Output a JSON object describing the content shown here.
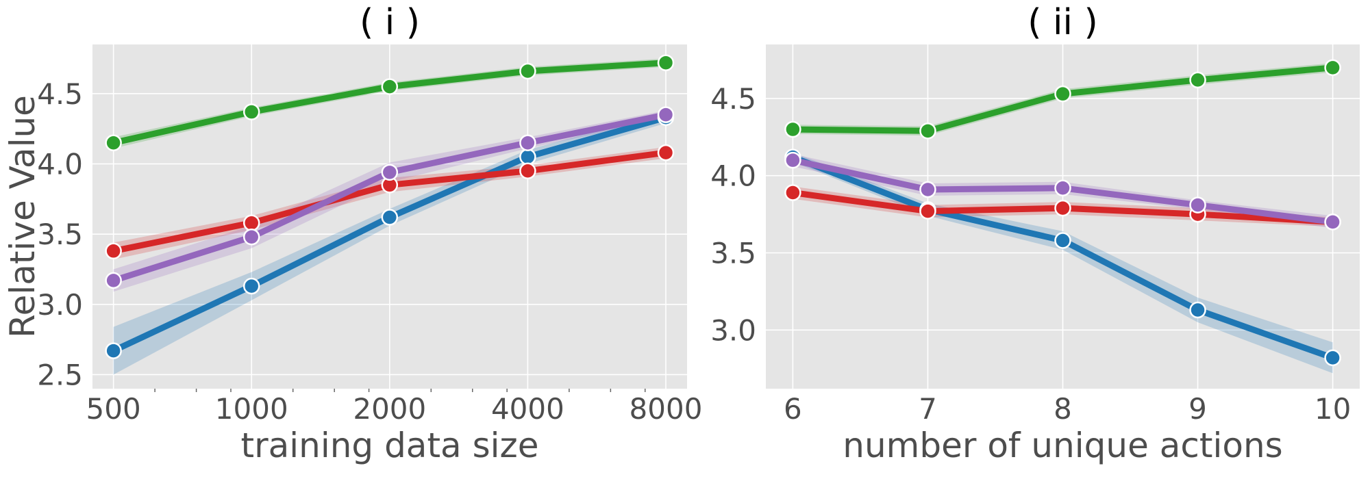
{
  "chart_data": [
    {
      "type": "line",
      "title": "( i )",
      "xlabel": "training data size",
      "ylabel": "Relative Value",
      "x_scale": "log2",
      "categories": [
        "500",
        "1000",
        "2000",
        "4000",
        "8000"
      ],
      "x": [
        500,
        1000,
        2000,
        4000,
        8000
      ],
      "xlim": [
        450,
        8900
      ],
      "ylim": [
        2.4,
        4.85
      ],
      "yticks": [
        2.5,
        3.0,
        3.5,
        4.0,
        4.5
      ],
      "ytick_labels": [
        "2.5",
        "3.0",
        "3.5",
        "4.0",
        "4.5"
      ],
      "grid": true,
      "series": [
        {
          "name": "green",
          "color": "#2ca02c",
          "values": [
            4.15,
            4.37,
            4.55,
            4.66,
            4.72
          ],
          "err": [
            0.04,
            0.03,
            0.03,
            0.03,
            0.03
          ]
        },
        {
          "name": "purple",
          "color": "#9467bd",
          "values": [
            3.17,
            3.48,
            3.94,
            4.15,
            4.35
          ],
          "err": [
            0.08,
            0.08,
            0.07,
            0.04,
            0.03
          ]
        },
        {
          "name": "red",
          "color": "#d62728",
          "values": [
            3.38,
            3.58,
            3.85,
            3.95,
            4.08
          ],
          "err": [
            0.06,
            0.05,
            0.05,
            0.04,
            0.04
          ]
        },
        {
          "name": "blue",
          "color": "#1f77b4",
          "values": [
            2.67,
            3.13,
            3.62,
            4.05,
            4.33
          ],
          "err": [
            0.17,
            0.1,
            0.06,
            0.05,
            0.04
          ]
        }
      ]
    },
    {
      "type": "line",
      "title": "( ii )",
      "xlabel": "number of unique actions",
      "ylabel": "",
      "categories": [
        "6",
        "7",
        "8",
        "9",
        "10"
      ],
      "x": [
        6,
        7,
        8,
        9,
        10
      ],
      "xlim": [
        5.8,
        10.2
      ],
      "ylim": [
        2.62,
        4.85
      ],
      "yticks": [
        3.0,
        3.5,
        4.0,
        4.5
      ],
      "ytick_labels": [
        "3.0",
        "3.5",
        "4.0",
        "4.5"
      ],
      "grid": true,
      "series": [
        {
          "name": "green",
          "color": "#2ca02c",
          "values": [
            4.3,
            4.29,
            4.53,
            4.62,
            4.7
          ],
          "err": [
            0.03,
            0.03,
            0.03,
            0.03,
            0.03
          ]
        },
        {
          "name": "purple",
          "color": "#9467bd",
          "values": [
            4.1,
            3.91,
            3.92,
            3.81,
            3.7
          ],
          "err": [
            0.04,
            0.04,
            0.04,
            0.03,
            0.04
          ]
        },
        {
          "name": "red",
          "color": "#d62728",
          "values": [
            3.89,
            3.77,
            3.79,
            3.75,
            3.7
          ],
          "err": [
            0.04,
            0.04,
            0.04,
            0.04,
            0.03
          ]
        },
        {
          "name": "blue",
          "color": "#1f77b4",
          "values": [
            4.12,
            3.78,
            3.58,
            3.13,
            2.82
          ],
          "err": [
            0.03,
            0.04,
            0.06,
            0.08,
            0.1
          ]
        }
      ]
    }
  ]
}
